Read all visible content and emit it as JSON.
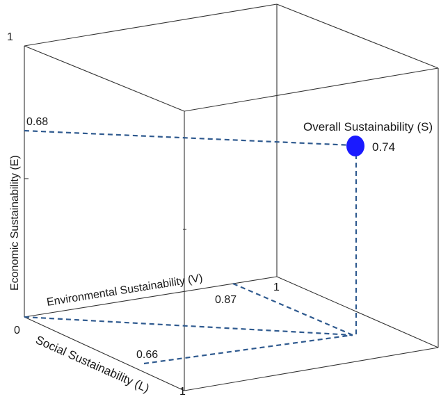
{
  "diagram": {
    "axis_labels": {
      "economic": "Economic Sustainability (E)",
      "environmental": "Environmental Sustainability (V)",
      "social": "Social Sustainability (L)"
    },
    "tick_labels": {
      "origin": "0",
      "economic_max": "1",
      "environmental_max": "1",
      "social_max": "1"
    },
    "values": {
      "economic": "0.68",
      "environmental": "0.87",
      "social": "0.66",
      "overall": "0.74"
    },
    "point": {
      "label": "Overall Sustainability (S)",
      "color": "#1a1aff"
    },
    "colors": {
      "guide_lines": "#2f5a8f",
      "box_edges": "#333333"
    }
  }
}
